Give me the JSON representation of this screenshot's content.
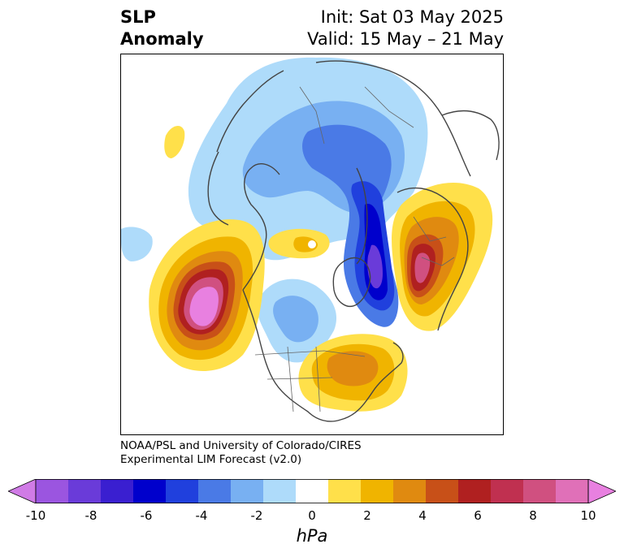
{
  "title": {
    "left_line1": "SLP",
    "left_line2": "Anomaly",
    "init": "Init: Sat 03 May 2025",
    "valid": "Valid: 15 May – 21 May"
  },
  "credit": {
    "line1": "NOAA/PSL and University of Colorado/CIRES",
    "line2": "Experimental LIM Forecast (v2.0)"
  },
  "colorbar": {
    "unit": "hPa",
    "tick_labels": [
      "-10",
      "-8",
      "-6",
      "-4",
      "-2",
      "0",
      "2",
      "4",
      "6",
      "8",
      "10"
    ],
    "colors": [
      "#d07be6",
      "#9b55e0",
      "#6a3bd9",
      "#3a1fd0",
      "#0000cc",
      "#2040dd",
      "#4a7ae6",
      "#78b0f2",
      "#aedbfa",
      "#ffffff",
      "#ffe04a",
      "#f0b400",
      "#e08a10",
      "#c85018",
      "#b02020",
      "#c03050",
      "#d05080",
      "#e070b8",
      "#e880e0"
    ]
  },
  "map": {
    "projection": "north-polar-stereographic",
    "anomalies": [
      {
        "label": "negative-arctic-broad",
        "level_hPa": -2
      },
      {
        "label": "negative-arctic-core",
        "level_hPa": -4
      },
      {
        "label": "negative-greenland-core",
        "level_hPa": -10
      },
      {
        "label": "positive-north-pacific",
        "level_hPa": 10
      },
      {
        "label": "positive-europe",
        "level_hPa": 8
      },
      {
        "label": "positive-north-atlantic-us",
        "level_hPa": 4
      },
      {
        "label": "positive-arctic-small",
        "level_hPa": 2
      },
      {
        "label": "negative-north-america",
        "level_hPa": -4
      }
    ]
  }
}
